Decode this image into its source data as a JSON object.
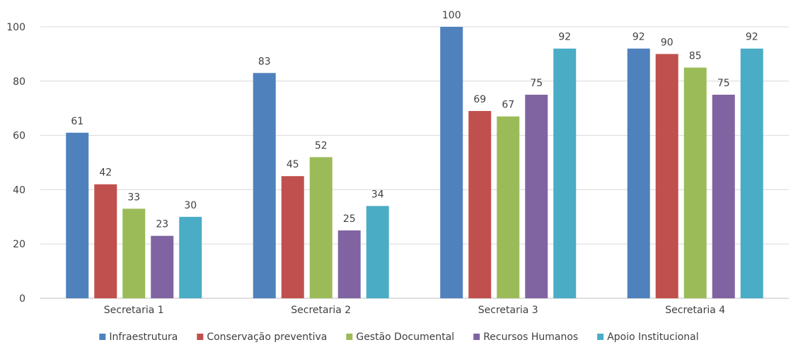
{
  "chart_data": {
    "type": "bar",
    "title": "",
    "xlabel": "",
    "ylabel": "",
    "ylim": [
      0,
      100
    ],
    "yticks": [
      0,
      20,
      40,
      60,
      80,
      100
    ],
    "grid": true,
    "legend_position": "bottom",
    "categories": [
      "Secretaria 1",
      "Secretaria 2",
      "Secretaria 3",
      "Secretaria 4"
    ],
    "series": [
      {
        "name": "Infraestrutura",
        "color": "#4F81BD",
        "values": [
          61,
          83,
          100,
          92
        ]
      },
      {
        "name": "Conservação preventiva",
        "color": "#C0504D",
        "values": [
          42,
          45,
          69,
          90
        ]
      },
      {
        "name": "Gestão Documental",
        "color": "#9BBB59",
        "values": [
          33,
          52,
          67,
          85
        ]
      },
      {
        "name": "Recursos Humanos",
        "color": "#8064A2",
        "values": [
          23,
          25,
          75,
          75
        ]
      },
      {
        "name": "Apoio Institucional",
        "color": "#4BACC6",
        "values": [
          30,
          34,
          92,
          92
        ]
      }
    ]
  }
}
